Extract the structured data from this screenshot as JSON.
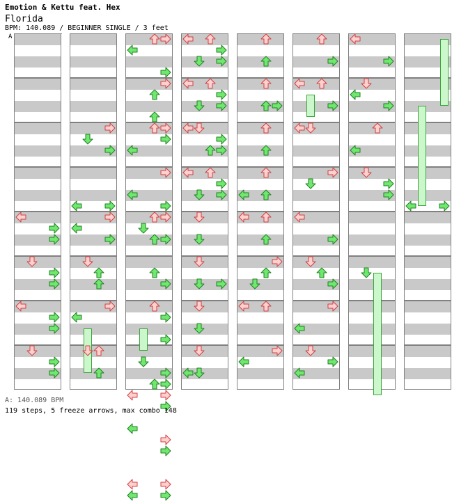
{
  "header": {
    "artist": "Emotion & Kettu feat. Hex",
    "title": "Florida",
    "info": "BPM: 140.089 / BEGINNER SINGLE / 3 feet",
    "marker": "A"
  },
  "footer": {
    "bpm": "A: 140.089 BPM",
    "stats": "119 steps, 5 freeze arrows, max combo 148"
  },
  "colors": {
    "red_arrow": "#ffd0d0",
    "red_outline": "#d04040",
    "green_arrow": "#70e870",
    "green_outline": "#208020",
    "freeze_fill": "#ccf7cc"
  },
  "chart": {
    "lanes": [
      "left",
      "down",
      "up",
      "right"
    ],
    "columns": [
      {
        "notes": [],
        "freezes": []
      },
      {
        "notes": [],
        "freezes": []
      },
      {
        "notes": [
          [
            "up",
            0
          ],
          [
            "right",
            0
          ],
          [
            "left",
            1
          ],
          [
            "right",
            3
          ],
          [
            "right",
            4
          ],
          [
            "up",
            5
          ],
          [
            "up",
            7
          ],
          [
            "up",
            8
          ],
          [
            "right",
            8
          ],
          [
            "right",
            9
          ],
          [
            "left",
            10
          ],
          [
            "right",
            12
          ],
          [
            "left",
            14
          ],
          [
            "right",
            15
          ],
          [
            "up",
            16
          ],
          [
            "right",
            16
          ],
          [
            "down",
            17
          ],
          [
            "up",
            18
          ],
          [
            "right",
            18
          ],
          [
            "up",
            21
          ],
          [
            "right",
            22
          ],
          [
            "up",
            24
          ],
          [
            "right",
            25
          ],
          [
            "right",
            27
          ],
          [
            "down",
            29
          ],
          [
            "right",
            30
          ],
          [
            "up",
            31
          ],
          [
            "right",
            31
          ],
          [
            "left",
            32
          ],
          [
            "right",
            32
          ],
          [
            "right",
            33
          ],
          [
            "left",
            35
          ],
          [
            "right",
            36
          ],
          [
            "right",
            37
          ],
          [
            "left",
            40
          ],
          [
            "right",
            40
          ],
          [
            "left",
            41
          ],
          [
            "right",
            41
          ]
        ],
        "freezes": [
          [
            "down",
            26,
            28
          ]
        ]
      },
      {
        "notes": [],
        "freezes": []
      },
      {
        "notes": [],
        "freezes": []
      },
      {
        "notes": [],
        "freezes": []
      },
      {
        "notes": [],
        "freezes": []
      },
      {
        "notes": [],
        "freezes": []
      }
    ]
  }
}
